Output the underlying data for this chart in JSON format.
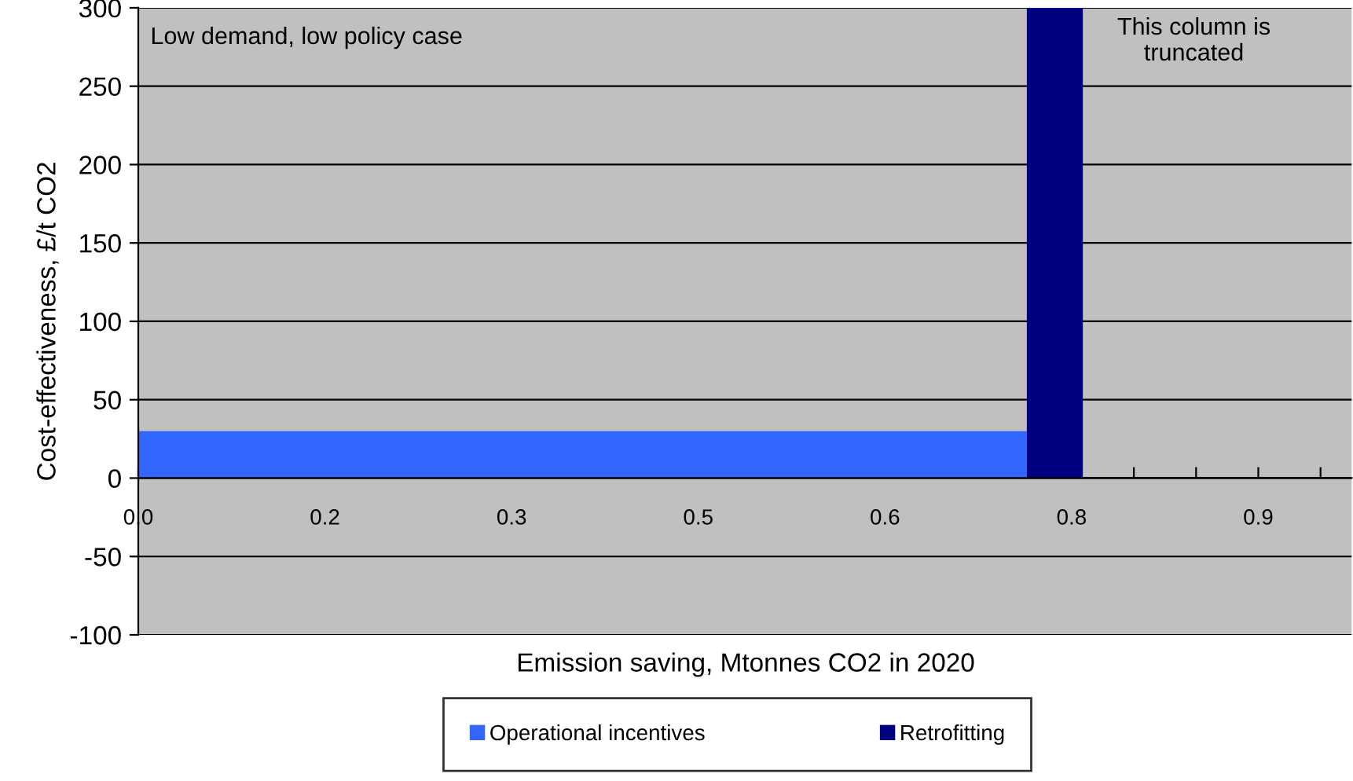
{
  "chart_data": {
    "type": "area",
    "xlabel": "Emission saving, Mtonnes CO2 in 2020",
    "ylabel": "Cost-effectiveness, £/t CO2",
    "series": [
      {
        "name": "Operational incentives",
        "color": "#3366ff",
        "x": [
          0,
          0.714
        ],
        "values": [
          30,
          30
        ]
      },
      {
        "name": "Retrofitting",
        "color": "#000080",
        "x": [
          0.714,
          0.759
        ],
        "values": [
          300,
          300
        ]
      }
    ],
    "xlim": [
      0,
      0.975
    ],
    "xticks": [
      {
        "value": 0,
        "label": "0.0"
      },
      {
        "value": 0.05,
        "label": null
      },
      {
        "value": 0.1,
        "label": null
      },
      {
        "value": 0.15,
        "label": "0.2"
      },
      {
        "value": 0.2,
        "label": null
      },
      {
        "value": 0.25,
        "label": null
      },
      {
        "value": 0.3,
        "label": "0.3"
      },
      {
        "value": 0.35,
        "label": null
      },
      {
        "value": 0.4,
        "label": null
      },
      {
        "value": 0.45,
        "label": "0.5"
      },
      {
        "value": 0.5,
        "label": null
      },
      {
        "value": 0.55,
        "label": null
      },
      {
        "value": 0.6,
        "label": "0.6"
      },
      {
        "value": 0.65,
        "label": null
      },
      {
        "value": 0.7,
        "label": null
      },
      {
        "value": 0.75,
        "label": "0.8"
      },
      {
        "value": 0.8,
        "label": null
      },
      {
        "value": 0.85,
        "label": null
      },
      {
        "value": 0.9,
        "label": "0.9"
      },
      {
        "value": 0.95,
        "label": null
      }
    ],
    "ylim": [
      -100,
      300
    ],
    "yticks": [
      -100,
      -50,
      0,
      50,
      100,
      150,
      200,
      250,
      300
    ],
    "grid": "y",
    "legend": "bottom",
    "annotations": [
      "Low demand, low policy case",
      "This column is\ntruncated"
    ]
  }
}
